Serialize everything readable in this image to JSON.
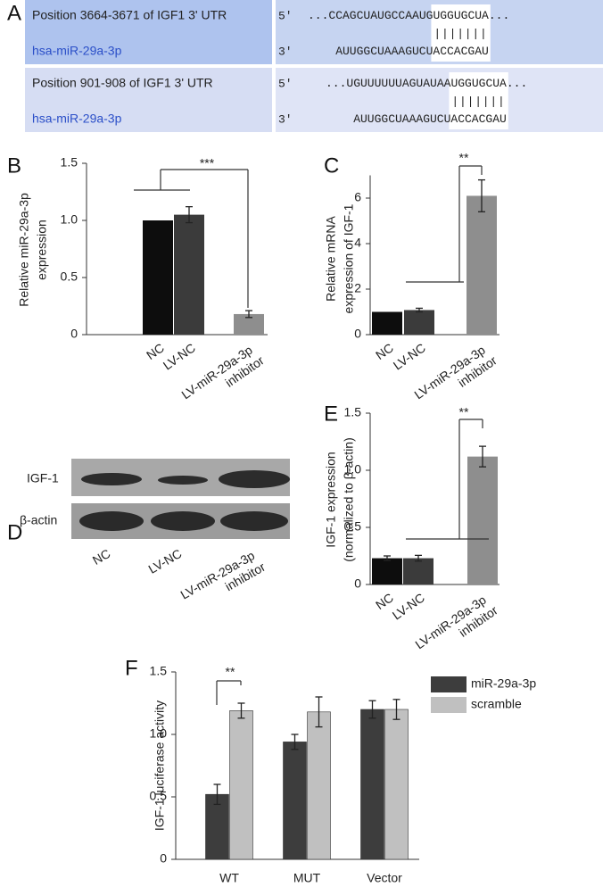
{
  "panel_a": {
    "label": "A",
    "rows": [
      {
        "position": "Position 3664-3671 of IGF1 3' UTR",
        "mirna": "hsa-miR-29a-3p",
        "five": "5'",
        "three": "3'",
        "target": [
          "...CCAGCUAUGCCAAUG",
          "UGGUGCUA",
          "..."
        ],
        "pairing": "|||||||",
        "mirna_seq": [
          "AUUGGCUAAAGUCU",
          "ACCACGAU"
        ]
      },
      {
        "position": "Position 901-908 of IGF1 3' UTR",
        "mirna": "hsa-miR-29a-3p",
        "five": "5'",
        "three": "3'",
        "target": [
          "...UGUUUUUUAGUAUAA",
          "UGGUGCUA",
          "..."
        ],
        "pairing": "|||||||",
        "mirna_seq": [
          "AUUGGCUAAAGUCU",
          "ACCACGAU"
        ]
      }
    ]
  },
  "chart_data": [
    {
      "panel_label": "B",
      "type": "bar",
      "ylabel": [
        "Relative miR-29a-3p",
        "expression"
      ],
      "categories": [
        "NC",
        "LV-NC",
        "LV-miR-29a-3p inhibitor"
      ],
      "values": [
        1.0,
        1.05,
        0.18
      ],
      "errors": [
        null,
        0.07,
        0.03
      ],
      "colors": [
        "#0d0d0d",
        "#3b3b3b",
        "#8e8e8e"
      ],
      "ylim": [
        0,
        1.5
      ],
      "yticks": [
        0,
        0.5,
        {
          "value": 1,
          "label": "1.0"
        },
        1.5
      ],
      "annotation": "***"
    },
    {
      "panel_label": "C",
      "type": "bar",
      "ylabel": [
        "Relative mRNA",
        "expression of IGF-1"
      ],
      "categories": [
        "NC",
        "LV-NC",
        "LV-miR-29a-3p inhibitor"
      ],
      "values": [
        1.0,
        1.08,
        6.1
      ],
      "errors": [
        null,
        0.08,
        0.7
      ],
      "colors": [
        "#0d0d0d",
        "#3b3b3b",
        "#8e8e8e"
      ],
      "ylim": [
        0,
        7
      ],
      "yticks": [
        0,
        2,
        4,
        6
      ],
      "annotation": "**"
    },
    {
      "panel_label": "E",
      "type": "bar",
      "ylabel": [
        "IGF-1 expression",
        "(normalized to β-actin)"
      ],
      "categories": [
        "NC",
        "LV-NC",
        "LV-miR-29a-3p inhibitor"
      ],
      "values": [
        0.23,
        0.23,
        1.12
      ],
      "errors": [
        0.02,
        0.025,
        0.09
      ],
      "colors": [
        "#0d0d0d",
        "#3b3b3b",
        "#8e8e8e"
      ],
      "ylim": [
        0,
        1.5
      ],
      "yticks": [
        0,
        0.5,
        {
          "value": 1,
          "label": "1.0"
        },
        1.5
      ],
      "annotation": "**"
    },
    {
      "panel_label": "F",
      "type": "grouped_bar",
      "ylabel": [
        "IGF-1 luciferase activity"
      ],
      "categories": [
        "WT",
        "MUT",
        "Vector"
      ],
      "series": [
        {
          "name": "miR-29a-3p",
          "color": "#3d3d3d",
          "values": [
            0.52,
            0.94,
            1.2
          ],
          "errors": [
            0.08,
            0.06,
            0.07
          ]
        },
        {
          "name": "scramble",
          "color": "#c0c0c0",
          "values": [
            1.19,
            1.18,
            1.2
          ],
          "errors": [
            0.06,
            0.12,
            0.08
          ]
        }
      ],
      "legend": "right",
      "ylim": [
        0,
        1.5
      ],
      "yticks": [
        0,
        0.5,
        {
          "value": 1,
          "label": "1.0"
        },
        1.5
      ],
      "annotation": "**"
    }
  ],
  "panel_d": {
    "label": "D",
    "rows": [
      "IGF-1",
      "β-actin"
    ],
    "lanes": [
      "NC",
      "LV-NC",
      "LV-miR-29a-3p inhibitor"
    ]
  }
}
